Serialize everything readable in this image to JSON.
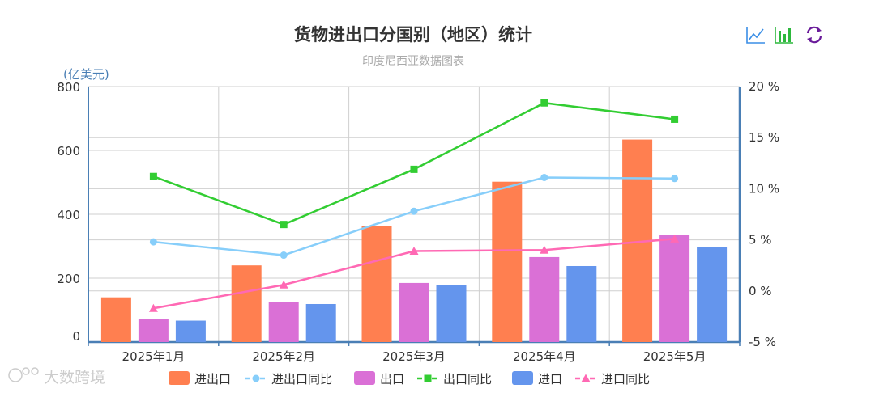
{
  "watermark": "大数跨境",
  "toolbox": [
    {
      "name": "line-chart-icon",
      "color": "#3a8ee6"
    },
    {
      "name": "bar-chart-icon",
      "color": "#2db83d"
    },
    {
      "name": "refresh-icon",
      "color": "#6a1b9a"
    }
  ],
  "chart_data": {
    "type": "bar",
    "title": "货物进出口分国别（地区）统计",
    "subtitle": "印度尼西亚数据图表",
    "y_unit": "(亿美元)",
    "categories": [
      "2025年1月",
      "2025年2月",
      "2025年3月",
      "2025年4月",
      "2025年5月"
    ],
    "ylim": [
      0,
      800
    ],
    "yticks": [
      0,
      200,
      400,
      600,
      800
    ],
    "y2lim": [
      -5,
      20
    ],
    "y2ticks": [
      "-5 %",
      "0 %",
      "5 %",
      "10 %",
      "15 %",
      "20 %"
    ],
    "grid": true,
    "legend_position": "bottom",
    "series": [
      {
        "name": "进出口",
        "type": "bar",
        "axis": "left",
        "color": "#ff7f50",
        "values": [
          140,
          240,
          363,
          502,
          634
        ]
      },
      {
        "name": "进出口同比",
        "type": "line",
        "axis": "right",
        "marker": "circle",
        "color": "#87cefa",
        "values": [
          4.8,
          3.5,
          7.8,
          11.1,
          11.0
        ]
      },
      {
        "name": "出口",
        "type": "bar",
        "axis": "left",
        "color": "#da70d6",
        "values": [
          73,
          126,
          185,
          266,
          336
        ]
      },
      {
        "name": "出口同比",
        "type": "line",
        "axis": "right",
        "marker": "square",
        "color": "#32cd32",
        "values": [
          11.2,
          6.5,
          11.9,
          18.4,
          16.8
        ]
      },
      {
        "name": "进口",
        "type": "bar",
        "axis": "left",
        "color": "#6495ed",
        "values": [
          67,
          119,
          179,
          238,
          298
        ]
      },
      {
        "name": "进口同比",
        "type": "line",
        "axis": "right",
        "marker": "triangle",
        "color": "#ff69b4",
        "values": [
          -1.7,
          0.6,
          3.9,
          4.0,
          5.1
        ]
      }
    ]
  }
}
